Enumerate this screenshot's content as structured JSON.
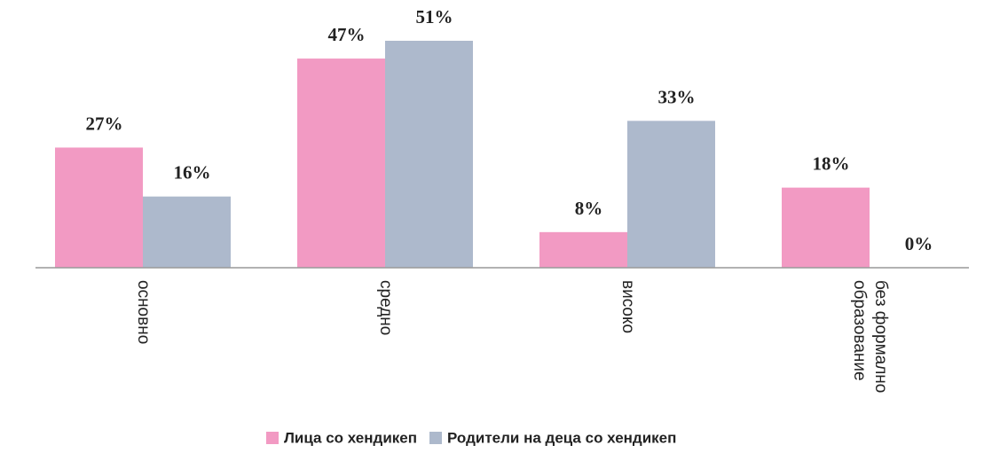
{
  "chart_data": {
    "type": "bar",
    "categories": [
      "основно",
      "средно",
      "високо",
      "без формално образование"
    ],
    "series": [
      {
        "name": "Лица со хендикеп",
        "color": "#f29ac3",
        "values": [
          27,
          47,
          8,
          18
        ],
        "value_labels": [
          "27%",
          "47%",
          "8%",
          "18%"
        ]
      },
      {
        "name": "Родители на деца со хендикеп",
        "color": "#adb9cc",
        "values": [
          16,
          51,
          33,
          0
        ],
        "value_labels": [
          "16%",
          "51%",
          "33%",
          "0%"
        ]
      }
    ],
    "legend": "bottom"
  }
}
